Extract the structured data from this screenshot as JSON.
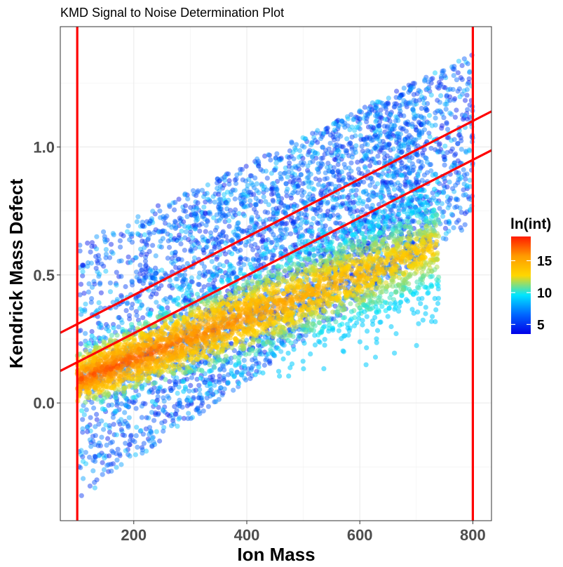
{
  "chart_data": {
    "type": "scatter",
    "title": "KMD Signal to Noise Determination Plot",
    "xlabel": "Ion Mass",
    "ylabel": "Kendrick Mass Defect",
    "xlim": [
      70,
      833
    ],
    "ylim": [
      -0.46,
      1.47
    ],
    "x_ticks": [
      200,
      400,
      600,
      800
    ],
    "y_ticks": [
      0.0,
      0.5,
      1.0
    ],
    "x_tick_labels": [
      "200",
      "400",
      "600",
      "800"
    ],
    "y_tick_labels": [
      "0.0",
      "0.5",
      "1.0"
    ],
    "grid": true,
    "legend": {
      "title": "ln(int)",
      "position": "right",
      "range": [
        3.5,
        18.8
      ],
      "ticks": [
        5,
        10,
        15
      ],
      "tick_labels": [
        "5",
        "10",
        "15"
      ],
      "colors": [
        "#0000e8",
        "#0066ff",
        "#00e6ff",
        "#ffd700",
        "#ff9a00",
        "#ff1a00"
      ]
    },
    "reference_lines": {
      "vertical": [
        100,
        800
      ],
      "sloped": [
        {
          "x": [
            70,
            833
          ],
          "y": [
            0.274,
            1.139
          ]
        },
        {
          "x": [
            70,
            833
          ],
          "y": [
            0.125,
            0.987
          ]
        }
      ],
      "color": "#ff0000"
    },
    "point_clouds": [
      {
        "region": "noise",
        "x_range": [
          100,
          800
        ],
        "kmd_low_at_100": -0.38,
        "kmd_low_slope": 0.00155,
        "kmd_high_at_100": 0.62,
        "kmd_high_slope": 0.00106,
        "ln_int_range": [
          4,
          9
        ]
      },
      {
        "region": "signal",
        "x_range": [
          100,
          740
        ],
        "kmd_center_at_100": 0.09,
        "kmd_center_slope": 0.00082,
        "ln_int_peak": 18,
        "ln_int_edge": 9
      }
    ]
  }
}
